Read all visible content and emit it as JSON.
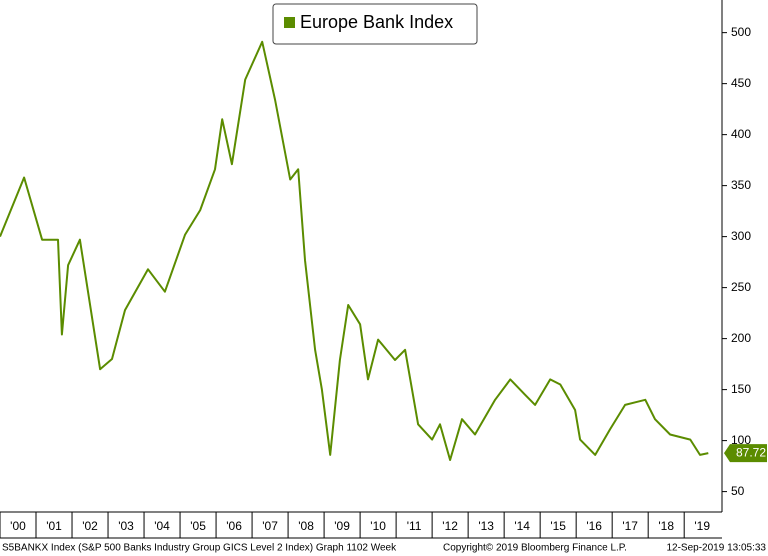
{
  "chart_data": {
    "type": "line",
    "legend": "top-center",
    "series": [
      {
        "name": "Europe Bank Index",
        "color": "#5b8c00",
        "x": [
          2000.0,
          2000.67,
          2001.17,
          2001.61,
          2001.72,
          2001.89,
          2002.22,
          2002.78,
          2003.11,
          2003.47,
          2004.11,
          2004.58,
          2005.14,
          2005.56,
          2005.97,
          2006.17,
          2006.44,
          2006.81,
          2007.28,
          2007.64,
          2008.06,
          2008.28,
          2008.47,
          2008.75,
          2008.94,
          2009.17,
          2009.44,
          2009.67,
          2010.0,
          2010.22,
          2010.5,
          2010.97,
          2011.25,
          2011.61,
          2012.0,
          2012.22,
          2012.5,
          2012.83,
          2013.19,
          2013.75,
          2014.17,
          2014.58,
          2014.86,
          2015.28,
          2015.56,
          2015.97,
          2016.11,
          2016.53,
          2016.94,
          2017.36,
          2017.92,
          2018.19,
          2018.61,
          2019.17,
          2019.44,
          2019.67
        ],
        "values": [
          300,
          358,
          297,
          297,
          204,
          272,
          297,
          170,
          180,
          228,
          268,
          246,
          302,
          326,
          366,
          415,
          371,
          454,
          491,
          434,
          356,
          366,
          277,
          189,
          150,
          86,
          179,
          233,
          214,
          160,
          199,
          179,
          189,
          116,
          101,
          116,
          81,
          121,
          106,
          140,
          160,
          145,
          135,
          160,
          155,
          130,
          101,
          86,
          111,
          135,
          140,
          121,
          106,
          101,
          86,
          87.72
        ]
      }
    ],
    "xlim": [
      2000,
      2020.05
    ],
    "xticks": [
      {
        "value": 2000,
        "label": "'00"
      },
      {
        "value": 2001,
        "label": "'01"
      },
      {
        "value": 2002,
        "label": "'02"
      },
      {
        "value": 2003,
        "label": "'03"
      },
      {
        "value": 2004,
        "label": "'04"
      },
      {
        "value": 2005,
        "label": "'05"
      },
      {
        "value": 2006,
        "label": "'06"
      },
      {
        "value": 2007,
        "label": "'07"
      },
      {
        "value": 2008,
        "label": "'08"
      },
      {
        "value": 2009,
        "label": "'09"
      },
      {
        "value": 2010,
        "label": "'10"
      },
      {
        "value": 2011,
        "label": "'11"
      },
      {
        "value": 2012,
        "label": "'12"
      },
      {
        "value": 2013,
        "label": "'13"
      },
      {
        "value": 2014,
        "label": "'14"
      },
      {
        "value": 2015,
        "label": "'15"
      },
      {
        "value": 2016,
        "label": "'16"
      },
      {
        "value": 2017,
        "label": "'17"
      },
      {
        "value": 2018,
        "label": "'18"
      },
      {
        "value": 2019,
        "label": "'19"
      }
    ],
    "ylim": [
      30,
      532
    ],
    "yticks": [
      50,
      100,
      150,
      200,
      250,
      300,
      350,
      400,
      450,
      500
    ],
    "grid": false,
    "footer_left": "S5BANKX Index (S&P 500 Banks Industry Group GICS Level 2 Index) Graph 1102  Week",
    "footer_center": "Copyright© 2019 Bloomberg Finance L.P.",
    "footer_right": "12-Sep-2019 13:05:33"
  }
}
